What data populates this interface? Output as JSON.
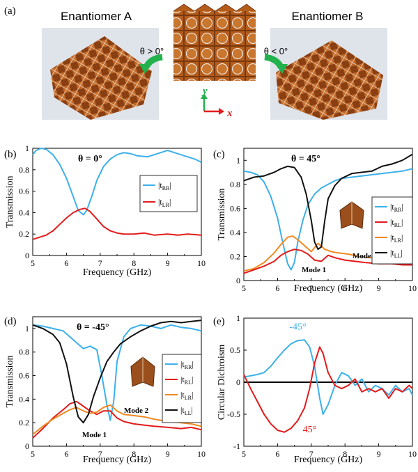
{
  "figure": {
    "panel_a": {
      "label": "(a)",
      "left_title": "Enantiomer A",
      "right_title": "Enantiomer B",
      "left_condition": "θ > 0°",
      "right_condition": "θ < 0°",
      "axis_x": "x",
      "axis_y": "y"
    },
    "colors": {
      "tRR": "#3cb0ea",
      "tRL": "#e21b1b",
      "tLR": "#f0891f",
      "tLL": "#111111",
      "arrow_green": "#22b14c",
      "axis_x_red": "#e21b1b",
      "axis_y_green": "#22b14c",
      "copper": "#a0521d"
    }
  },
  "chart_data": [
    {
      "panel": "(b)",
      "type": "line",
      "annotation": "θ = 0°",
      "xlabel": "Frequency (GHz)",
      "ylabel": "Transmission",
      "xlim": [
        5,
        10
      ],
      "ylim": [
        0,
        1
      ],
      "xticks": [
        "5",
        "6",
        "7",
        "8",
        "9",
        "10"
      ],
      "yticks": [
        "0",
        "0.2",
        "0.4",
        "0.6",
        "0.8",
        "1"
      ],
      "legend": [
        "|tRR|",
        "|tLR|"
      ],
      "legend_position": "center-right",
      "series": [
        {
          "name": "|tRR|",
          "color": "#3cb0ea",
          "x": [
            5.0,
            5.1,
            5.25,
            5.4,
            5.6,
            5.8,
            6.0,
            6.2,
            6.35,
            6.5,
            6.6,
            6.75,
            6.9,
            7.1,
            7.3,
            7.5,
            7.7,
            7.9,
            8.1,
            8.4,
            8.7,
            9.0,
            9.2,
            9.5,
            9.8,
            10.0
          ],
          "y": [
            0.94,
            0.98,
            1.0,
            0.99,
            0.94,
            0.85,
            0.72,
            0.55,
            0.42,
            0.38,
            0.42,
            0.55,
            0.7,
            0.83,
            0.9,
            0.94,
            0.96,
            0.95,
            0.93,
            0.92,
            0.95,
            0.98,
            0.96,
            0.93,
            0.9,
            0.87
          ]
        },
        {
          "name": "|tLR|",
          "color": "#e21b1b",
          "x": [
            5.0,
            5.2,
            5.4,
            5.6,
            5.8,
            6.0,
            6.2,
            6.4,
            6.55,
            6.7,
            6.9,
            7.1,
            7.3,
            7.5,
            7.7,
            8.0,
            8.3,
            8.6,
            9.0,
            9.3,
            9.6,
            10.0
          ],
          "y": [
            0.15,
            0.17,
            0.19,
            0.23,
            0.29,
            0.35,
            0.4,
            0.43,
            0.44,
            0.41,
            0.34,
            0.27,
            0.23,
            0.21,
            0.2,
            0.2,
            0.21,
            0.19,
            0.2,
            0.19,
            0.2,
            0.19
          ]
        }
      ]
    },
    {
      "panel": "(c)",
      "type": "line",
      "annotation": "θ = 45°",
      "xlabel": "Frequency (GHz)",
      "ylabel": "Transmission",
      "xlim": [
        5,
        10
      ],
      "ylim": [
        0,
        1.1
      ],
      "xticks": [
        "5",
        "6",
        "7",
        "8",
        "9",
        "10"
      ],
      "yticks": [
        "0",
        "0.2",
        "0.4",
        "0.6",
        "0.8",
        "1"
      ],
      "legend": [
        "|tRR|",
        "|tRL|",
        "|tLR|",
        "|tLL|"
      ],
      "legend_position": "center-right",
      "mode_labels": [
        "Mode 1",
        "Mode 2"
      ],
      "series": [
        {
          "name": "|tRR|",
          "color": "#3cb0ea",
          "x": [
            5.0,
            5.2,
            5.4,
            5.6,
            5.8,
            6.0,
            6.15,
            6.3,
            6.4,
            6.5,
            6.6,
            6.75,
            6.9,
            7.1,
            7.3,
            7.5,
            7.7,
            7.9,
            8.2,
            8.5,
            8.8,
            9.1,
            9.4,
            9.7,
            10.0
          ],
          "y": [
            0.91,
            0.9,
            0.88,
            0.82,
            0.7,
            0.52,
            0.32,
            0.14,
            0.09,
            0.15,
            0.32,
            0.5,
            0.63,
            0.72,
            0.77,
            0.8,
            0.83,
            0.85,
            0.86,
            0.87,
            0.88,
            0.89,
            0.9,
            0.91,
            0.93
          ]
        },
        {
          "name": "|tRL|",
          "color": "#e21b1b",
          "x": [
            5.0,
            5.3,
            5.6,
            5.9,
            6.1,
            6.3,
            6.5,
            6.7,
            6.9,
            7.1,
            7.3,
            7.5,
            7.7,
            8.0,
            8.3,
            8.6,
            9.0,
            9.4,
            9.7,
            10.0
          ],
          "y": [
            0.06,
            0.09,
            0.12,
            0.16,
            0.21,
            0.24,
            0.26,
            0.25,
            0.22,
            0.17,
            0.16,
            0.21,
            0.19,
            0.17,
            0.16,
            0.15,
            0.14,
            0.14,
            0.13,
            0.13
          ]
        },
        {
          "name": "|tLR|",
          "color": "#f0891f",
          "x": [
            5.0,
            5.3,
            5.6,
            5.9,
            6.1,
            6.3,
            6.45,
            6.6,
            6.8,
            7.0,
            7.2,
            7.4,
            7.6,
            7.8,
            8.1,
            8.4,
            8.8,
            9.2,
            9.6,
            10.0
          ],
          "y": [
            0.08,
            0.1,
            0.15,
            0.23,
            0.3,
            0.36,
            0.37,
            0.34,
            0.29,
            0.24,
            0.31,
            0.26,
            0.24,
            0.23,
            0.22,
            0.2,
            0.19,
            0.19,
            0.18,
            0.2
          ]
        },
        {
          "name": "|tLL|",
          "color": "#111111",
          "x": [
            5.0,
            5.3,
            5.6,
            5.9,
            6.1,
            6.3,
            6.5,
            6.7,
            6.85,
            7.0,
            7.1,
            7.2,
            7.3,
            7.4,
            7.5,
            7.7,
            7.9,
            8.2,
            8.5,
            8.8,
            9.1,
            9.4,
            9.7,
            10.0
          ],
          "y": [
            0.83,
            0.86,
            0.87,
            0.9,
            0.93,
            0.95,
            0.94,
            0.86,
            0.72,
            0.5,
            0.32,
            0.26,
            0.28,
            0.5,
            0.68,
            0.79,
            0.85,
            0.89,
            0.9,
            0.91,
            0.95,
            0.97,
            1.0,
            1.05
          ]
        }
      ]
    },
    {
      "panel": "(d)",
      "type": "line",
      "annotation": "θ = -45°",
      "xlabel": "Frequency (GHz)",
      "ylabel": "Transmission",
      "xlim": [
        5,
        10
      ],
      "ylim": [
        0,
        1.1
      ],
      "xticks": [
        "5",
        "6",
        "7",
        "8",
        "9",
        "10"
      ],
      "yticks": [
        "0",
        "0.2",
        "0.4",
        "0.6",
        "0.8",
        "1"
      ],
      "legend": [
        "|tRR|",
        "|tRL|",
        "|tLR|",
        "|tLL|"
      ],
      "legend_position": "center-right",
      "mode_labels": [
        "Mode 1",
        "Mode 2"
      ],
      "series": [
        {
          "name": "|tRR|",
          "color": "#3cb0ea",
          "x": [
            5.0,
            5.3,
            5.6,
            5.9,
            6.1,
            6.3,
            6.5,
            6.7,
            6.9,
            7.05,
            7.2,
            7.3,
            7.4,
            7.5,
            7.7,
            7.9,
            8.2,
            8.5,
            8.8,
            9.1,
            9.4,
            9.7,
            10.0
          ],
          "y": [
            1.03,
            1.02,
            1.0,
            0.98,
            0.93,
            0.88,
            0.83,
            0.85,
            0.82,
            0.6,
            0.35,
            0.22,
            0.38,
            0.72,
            0.93,
            1.0,
            1.03,
            1.02,
            1.0,
            1.03,
            1.01,
            1.0,
            0.98
          ]
        },
        {
          "name": "|tRL|",
          "color": "#e21b1b",
          "x": [
            5.0,
            5.3,
            5.6,
            5.9,
            6.1,
            6.3,
            6.5,
            6.7,
            6.9,
            7.1,
            7.3,
            7.5,
            7.7,
            8.0,
            8.3,
            8.6,
            9.0,
            9.4,
            9.7,
            10.0
          ],
          "y": [
            0.07,
            0.15,
            0.24,
            0.31,
            0.36,
            0.38,
            0.34,
            0.3,
            0.27,
            0.3,
            0.3,
            0.24,
            0.21,
            0.19,
            0.18,
            0.17,
            0.16,
            0.15,
            0.16,
            0.14
          ]
        },
        {
          "name": "|tLR|",
          "color": "#f0891f",
          "x": [
            5.0,
            5.3,
            5.6,
            5.9,
            6.1,
            6.3,
            6.5,
            6.7,
            6.9,
            7.1,
            7.3,
            7.5,
            7.7,
            8.0,
            8.3,
            8.6,
            9.0,
            9.4,
            9.7,
            10.0
          ],
          "y": [
            0.1,
            0.17,
            0.23,
            0.28,
            0.31,
            0.33,
            0.3,
            0.28,
            0.29,
            0.33,
            0.35,
            0.3,
            0.27,
            0.26,
            0.25,
            0.23,
            0.21,
            0.2,
            0.19,
            0.17
          ]
        },
        {
          "name": "|tLL|",
          "color": "#111111",
          "x": [
            5.0,
            5.3,
            5.6,
            5.8,
            6.0,
            6.2,
            6.35,
            6.5,
            6.65,
            6.8,
            7.0,
            7.2,
            7.4,
            7.6,
            7.9,
            8.2,
            8.5,
            8.8,
            9.1,
            9.4,
            9.7,
            10.0
          ],
          "y": [
            1.03,
            1.0,
            0.95,
            0.88,
            0.7,
            0.42,
            0.25,
            0.2,
            0.27,
            0.42,
            0.58,
            0.72,
            0.8,
            0.87,
            0.93,
            0.98,
            1.02,
            1.05,
            1.06,
            1.05,
            1.06,
            1.07
          ]
        }
      ]
    },
    {
      "panel": "(e)",
      "type": "line",
      "xlabel": "Frequency (GHz)",
      "ylabel": "Circular Dichroism",
      "xlim": [
        5,
        10
      ],
      "ylim": [
        -1,
        1
      ],
      "xticks": [
        "5",
        "6",
        "7",
        "8",
        "9",
        "10"
      ],
      "yticks": [
        "-1",
        "-0.5",
        "0",
        "0.5",
        "1"
      ],
      "zero_line": true,
      "series": [
        {
          "name": "-45°",
          "color": "#3cb0ea",
          "x": [
            5.0,
            5.2,
            5.4,
            5.6,
            5.8,
            6.0,
            6.2,
            6.4,
            6.6,
            6.8,
            6.95,
            7.1,
            7.25,
            7.35,
            7.5,
            7.7,
            7.9,
            8.1,
            8.3,
            8.5,
            8.7,
            8.9,
            9.1,
            9.3,
            9.5,
            9.7,
            9.9,
            10.0
          ],
          "y": [
            0.08,
            0.1,
            0.12,
            0.15,
            0.25,
            0.38,
            0.5,
            0.6,
            0.65,
            0.66,
            0.55,
            0.25,
            -0.25,
            -0.5,
            -0.35,
            -0.05,
            0.15,
            0.1,
            -0.05,
            0.05,
            -0.15,
            -0.05,
            -0.1,
            -0.2,
            -0.05,
            -0.15,
            -0.1,
            -0.2
          ]
        },
        {
          "name": "45°",
          "color": "#e21b1b",
          "x": [
            5.0,
            5.2,
            5.4,
            5.6,
            5.8,
            6.0,
            6.2,
            6.4,
            6.6,
            6.8,
            6.95,
            7.1,
            7.25,
            7.35,
            7.5,
            7.7,
            7.9,
            8.1,
            8.3,
            8.5,
            8.7,
            8.9,
            9.1,
            9.3,
            9.5,
            9.7,
            9.9,
            10.0
          ],
          "y": [
            0.12,
            -0.1,
            -0.3,
            -0.5,
            -0.65,
            -0.75,
            -0.78,
            -0.72,
            -0.6,
            -0.4,
            -0.1,
            0.3,
            0.55,
            0.45,
            0.15,
            -0.05,
            -0.1,
            -0.05,
            0.05,
            -0.15,
            -0.1,
            -0.15,
            -0.1,
            -0.25,
            -0.1,
            -0.15,
            -0.05,
            -0.1
          ]
        }
      ]
    }
  ]
}
